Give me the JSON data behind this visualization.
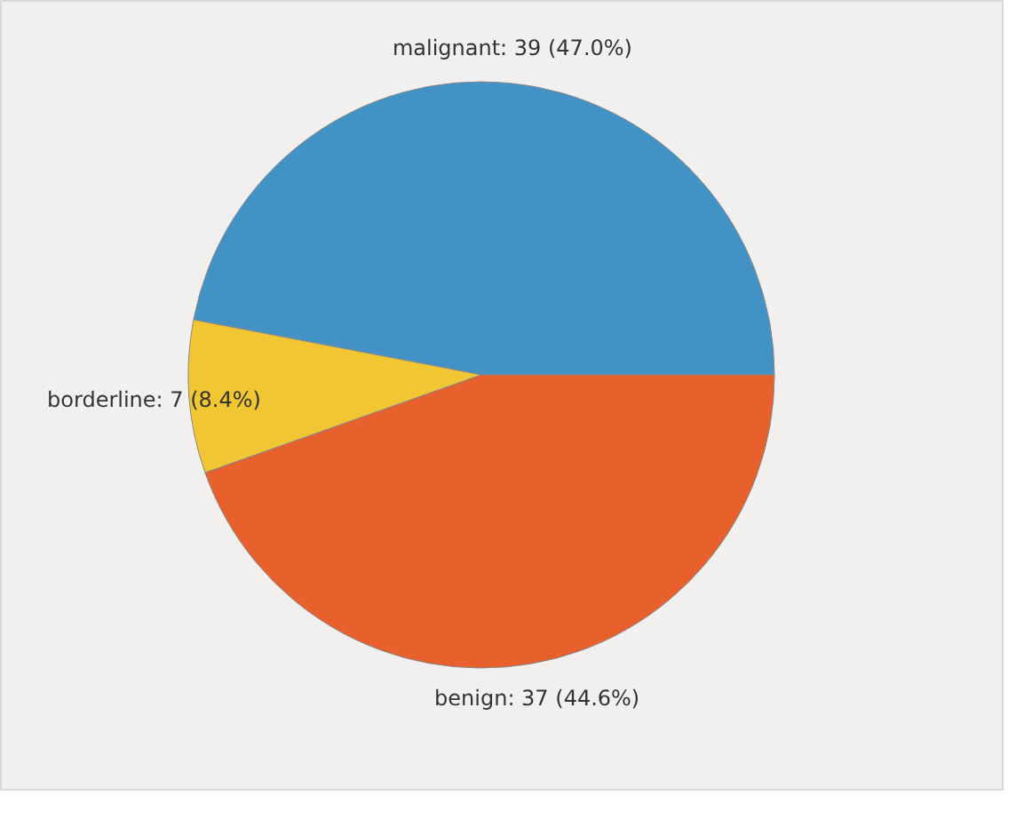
{
  "chart_data": {
    "type": "pie",
    "categories": [
      "malignant",
      "borderline",
      "benign"
    ],
    "values": [
      39,
      7,
      37
    ],
    "colors": [
      "#4292c6",
      "#f2c633",
      "#e8602c"
    ],
    "value_labels": [
      "39 (47.0%)",
      "7 (8.4%)",
      "37 (44.6%)"
    ]
  }
}
